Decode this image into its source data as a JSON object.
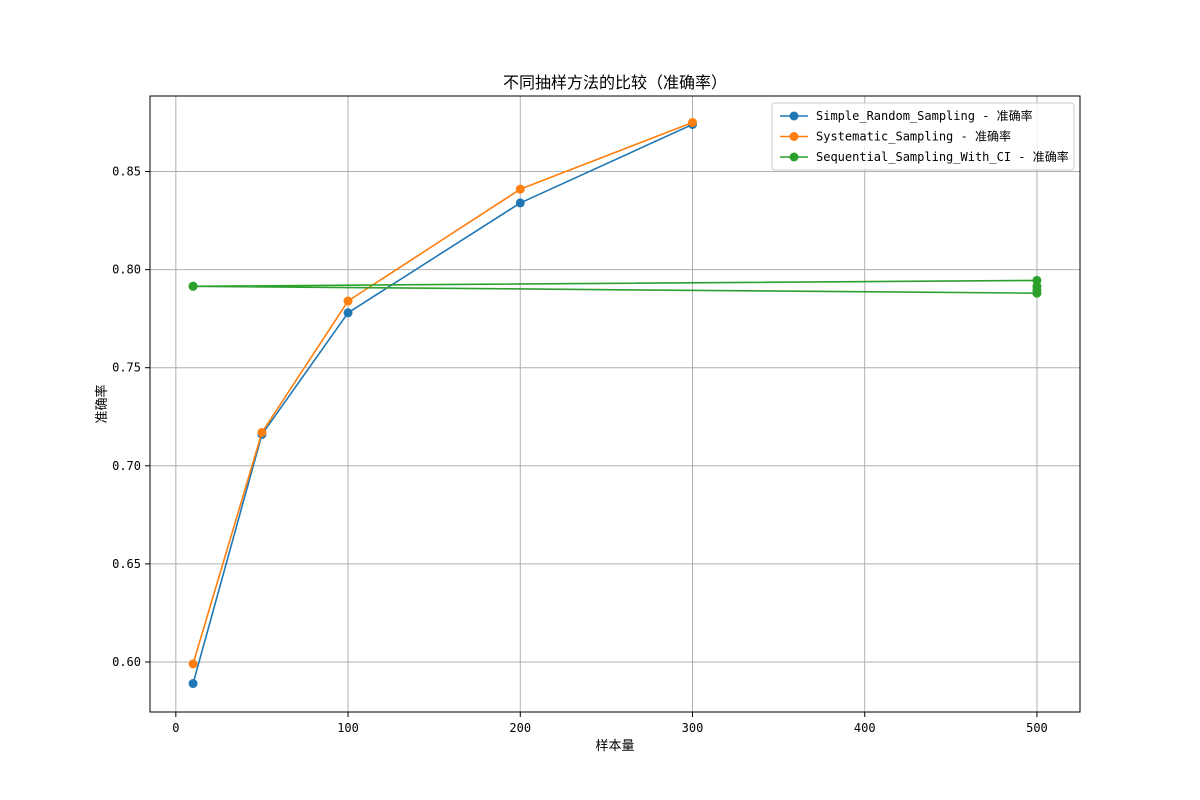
{
  "chart_data": {
    "type": "line",
    "title": "不同抽样方法的比较（准确率）",
    "xlabel": "样本量",
    "ylabel": "准确率",
    "xlim": [
      -15,
      525
    ],
    "ylim": [
      0.5745,
      0.8885
    ],
    "xticks": [
      0,
      100,
      200,
      300,
      400,
      500
    ],
    "yticks": [
      0.6,
      0.65,
      0.7,
      0.75,
      0.8,
      0.85
    ],
    "xtick_labels": [
      "0",
      "100",
      "200",
      "300",
      "400",
      "500"
    ],
    "ytick_labels": [
      "0.60",
      "0.65",
      "0.70",
      "0.75",
      "0.80",
      "0.85"
    ],
    "grid": true,
    "legend_position": "top-right",
    "series": [
      {
        "name": "Simple_Random_Sampling - 准确率",
        "color": "#1f77b4",
        "marker": "circle",
        "x": [
          10,
          50,
          100,
          200,
          300
        ],
        "y": [
          0.589,
          0.716,
          0.778,
          0.834,
          0.874
        ]
      },
      {
        "name": "Systematic_Sampling - 准确率",
        "color": "#ff7f0e",
        "marker": "circle",
        "x": [
          10,
          50,
          100,
          200,
          300
        ],
        "y": [
          0.599,
          0.717,
          0.784,
          0.841,
          0.875
        ]
      },
      {
        "name": "Sequential_Sampling_With_CI - 准确率",
        "color": "#2ca02c",
        "marker": "circle",
        "x": [
          10,
          500,
          500,
          500,
          500,
          10
        ],
        "y": [
          0.7915,
          0.7945,
          0.7915,
          0.7895,
          0.788,
          0.7915
        ]
      }
    ]
  }
}
